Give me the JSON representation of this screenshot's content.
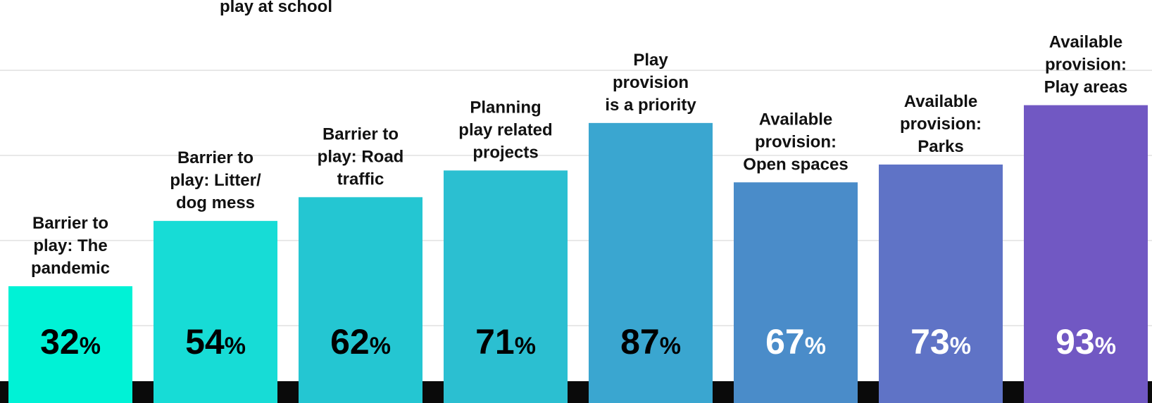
{
  "chart_data": {
    "type": "bar",
    "title": "",
    "xlabel": "",
    "ylabel": "",
    "ylim": [
      0,
      100
    ],
    "grid": true,
    "clipped_label": [
      "play at school"
    ],
    "categories": [
      [
        "Barrier to",
        "play: The",
        "pandemic"
      ],
      [
        "Barrier to",
        "play: Litter/",
        "dog mess"
      ],
      [
        "Barrier to",
        "play: Road",
        "traffic"
      ],
      [
        "Planning",
        "play related",
        "projects"
      ],
      [
        "Play",
        "provision",
        "is a priority"
      ],
      [
        "Available",
        "provision:",
        "Open spaces"
      ],
      [
        "Available",
        "provision:",
        "Parks"
      ],
      [
        "Available",
        "provision:",
        "Play areas"
      ]
    ],
    "values": [
      32,
      54,
      62,
      71,
      87,
      67,
      73,
      93
    ],
    "value_labels": [
      "32",
      "54",
      "62",
      "71",
      "87",
      "67",
      "73",
      "93"
    ],
    "value_suffix": "%",
    "bar_colors": [
      "#00f2d6",
      "#17dcd6",
      "#24c6d2",
      "#2bbfd1",
      "#3aa6d0",
      "#4a8cc9",
      "#5f73c6",
      "#7158c3"
    ],
    "value_label_colors": [
      "#000000",
      "#000000",
      "#000000",
      "#000000",
      "#000000",
      "#ffffff",
      "#ffffff",
      "#ffffff"
    ],
    "baseline_color": "#0a0a0a"
  }
}
